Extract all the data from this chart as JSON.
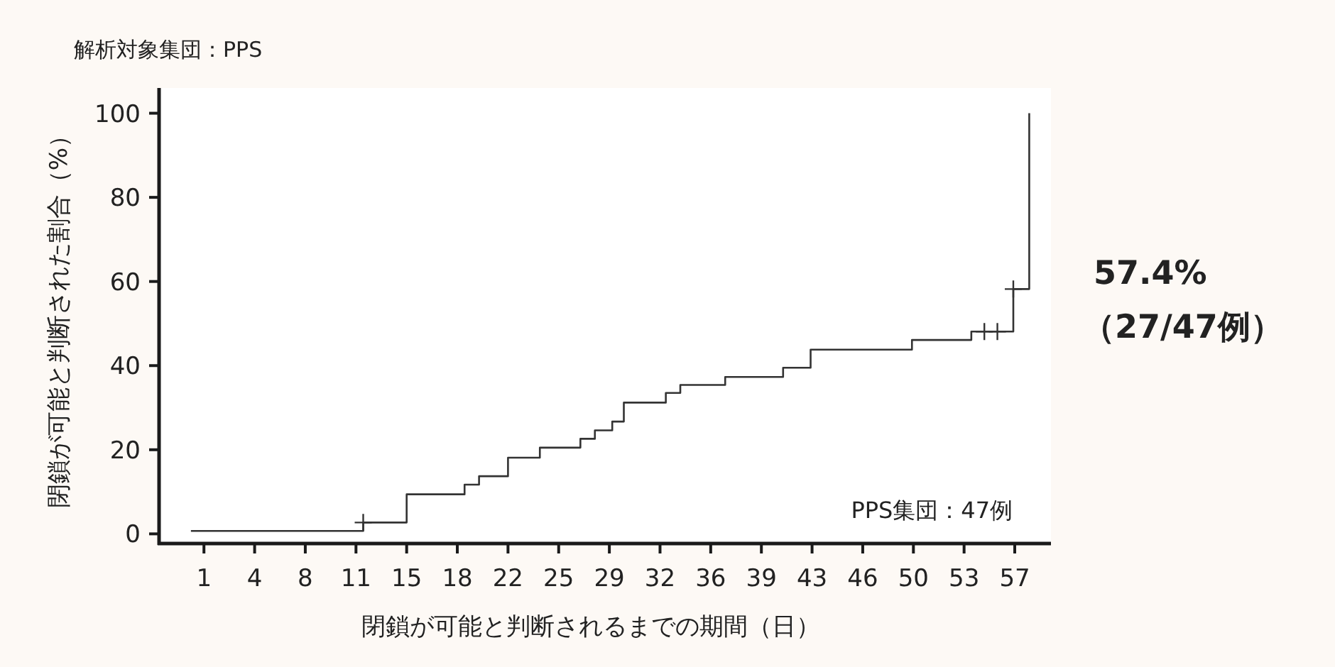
{
  "chart_data": {
    "type": "step",
    "subtitle": "解析対象集団：PPS",
    "xlabel": "閉鎖が可能と判断されるまでの期間（日）",
    "ylabel": "閉鎖が可能と判断された割合（%）",
    "xlim": [
      -2.1,
      59.5
    ],
    "ylim": [
      -2.3,
      106
    ],
    "xticks": [
      1,
      {
        "value": 4.5,
        "label": "4"
      },
      8,
      {
        "value": 11.5,
        "label": "11"
      },
      15,
      {
        "value": 18.5,
        "label": "18"
      },
      22,
      {
        "value": 25.5,
        "label": "25"
      },
      29,
      {
        "value": 32.5,
        "label": "32"
      },
      36,
      {
        "value": 39.5,
        "label": "39"
      },
      43,
      {
        "value": 46.5,
        "label": "46"
      },
      50,
      {
        "value": 53.5,
        "label": "53"
      },
      57
    ],
    "yticks": [
      0,
      20,
      40,
      60,
      80,
      100
    ],
    "grid": false,
    "series": [
      {
        "color": "#333333",
        "marker": "none",
        "x": [
          0.1,
          12,
          15,
          19,
          20,
          22,
          24.2,
          27,
          28,
          29.2,
          30,
          32.9,
          33.9,
          37,
          41,
          42.9,
          49.9,
          54,
          56.9,
          58
        ],
        "values": [
          0.7,
          2.7,
          9.4,
          11.7,
          13.7,
          18.1,
          20.5,
          22.6,
          24.6,
          26.7,
          31.2,
          33.5,
          35.4,
          37.3,
          39.5,
          43.8,
          46.1,
          48.1,
          58.2,
          100
        ]
      },
      {
        "type": "scatter",
        "color": "#333333",
        "marker": "cross",
        "x": [
          12,
          54.9,
          55.8,
          56.9
        ],
        "values": [
          2.7,
          48.1,
          48.1,
          58.2
        ]
      }
    ],
    "annotations": [
      "PPS集団：47例",
      "57.4%",
      "（27/47例）"
    ]
  }
}
